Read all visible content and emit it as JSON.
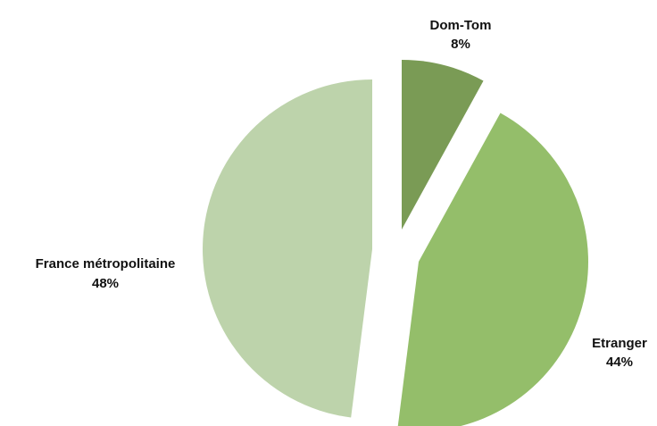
{
  "chart_data": {
    "type": "pie",
    "title": "",
    "unit": "%",
    "exploded": true,
    "legend": "none",
    "slices": [
      {
        "label": "Dom-Tom",
        "value": 8,
        "percent_label": "8%",
        "color": "#7a9b55"
      },
      {
        "label": "Etranger",
        "value": 44,
        "percent_label": "44%",
        "color": "#94be6a"
      },
      {
        "label": "France métropolitaine",
        "value": 48,
        "percent_label": "48%",
        "color": "#bdd3ab"
      }
    ]
  }
}
